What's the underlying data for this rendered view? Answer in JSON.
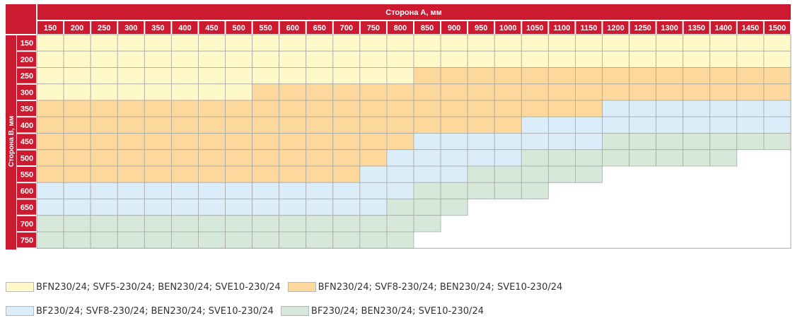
{
  "table": {
    "header_title": "Сторона A, мм",
    "side_title": "Сторона B, мм",
    "columns": [
      "150",
      "200",
      "250",
      "300",
      "350",
      "400",
      "450",
      "500",
      "550",
      "600",
      "650",
      "700",
      "750",
      "800",
      "850",
      "900",
      "950",
      "1000",
      "1050",
      "1100",
      "1150",
      "1200",
      "1250",
      "1300",
      "1350",
      "1400",
      "1450",
      "1500"
    ],
    "rows": [
      {
        "label": "150",
        "cells": "YYYYYYYYYYYYYYYYYYYYYYYYYYYY"
      },
      {
        "label": "200",
        "cells": "YYYYYYYYYYYYYYYYYYYYYYYYYYYY"
      },
      {
        "label": "250",
        "cells": "YYYYYYYYYYYYYYOOOOOOOOOOOOOO"
      },
      {
        "label": "300",
        "cells": "YYYYYYYYOOOOOOOOOOOOOOOOOOOO"
      },
      {
        "label": "350",
        "cells": "OOOOOOOOOOOOOOOOOOOOOBBBBBBB"
      },
      {
        "label": "400",
        "cells": "OOOOOOOOOOOOOOOOOOBBBBBBBBBB"
      },
      {
        "label": "450",
        "cells": "OOOOOOOOOOOOOOBBBBBBBGGGGGGG"
      },
      {
        "label": "500",
        "cells": "OOOOOOOOOOOOOBBBBBGGGGGGGG"
      },
      {
        "label": "550",
        "cells": "OOOOOOOOOOOOBBBBGGGGG"
      },
      {
        "label": "600",
        "cells": "BBBBBBBBBBBBBBGGGGG"
      },
      {
        "label": "650",
        "cells": "BBBBBBBBBBBBBGGG"
      },
      {
        "label": "700",
        "cells": "GGGGGGGGGGGGGGG"
      },
      {
        "label": "750",
        "cells": "GGGGGGGGGGGGGG"
      }
    ]
  },
  "colors": {
    "accent_red": "#cc1a30",
    "grid_line": "#a8a8a8",
    "Y": "#fff8c8",
    "O": "#fcd89c",
    "B": "#dcedfa",
    "G": "#d6e8da"
  },
  "legend": [
    {
      "key": "Y",
      "label": "BFN230/24; SVF5-230/24; BEN230/24; SVE10-230/24"
    },
    {
      "key": "O",
      "label": "BFN230/24; SVF8-230/24; BEN230/24; SVE10-230/24"
    },
    {
      "key": "B",
      "label": "BF230/24; SVF8-230/24; BEN230/24; SVE10-230/24"
    },
    {
      "key": "G",
      "label": "BF230/24; BEN230/24; SVE10-230/24"
    }
  ]
}
